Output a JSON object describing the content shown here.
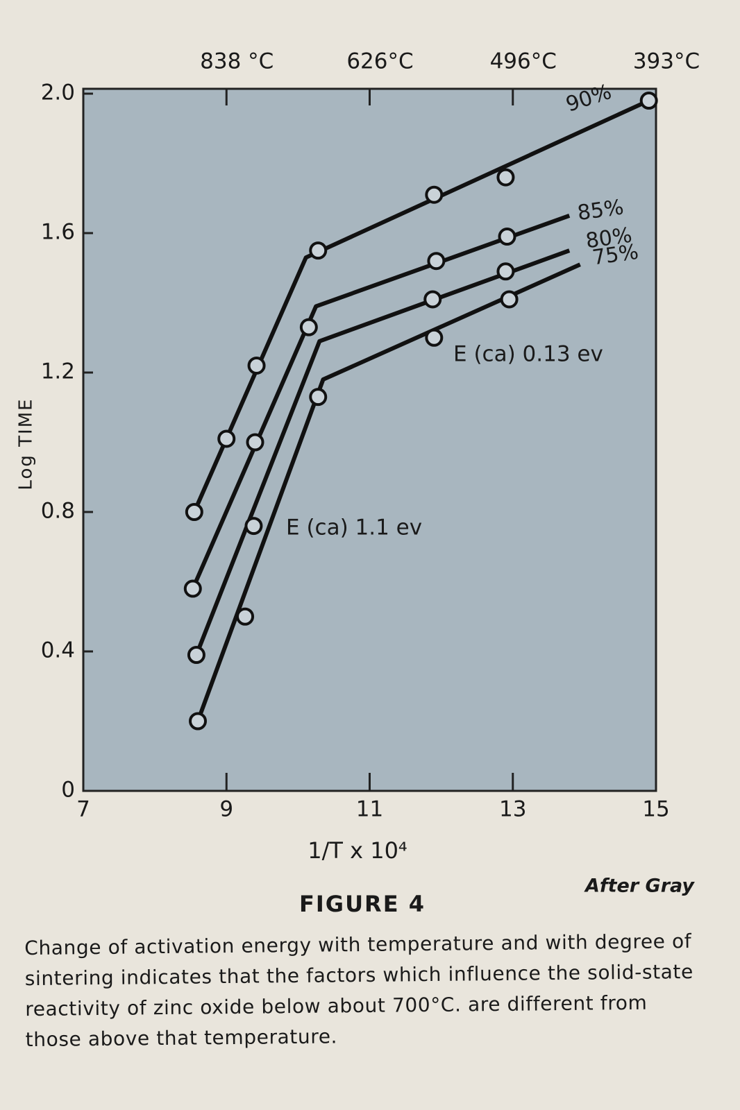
{
  "chart_data": {
    "type": "line",
    "title": "FIGURE 4",
    "credit": "After Gray",
    "caption": "Change of activation energy with temperature and with degree of sintering indicates that the factors which influence the solid-state reactivity of zinc oxide below about 700°C. are different from those above that temperature.",
    "x_label": "1/T x 10⁴",
    "y_label": "Log TIME",
    "xlim": [
      7,
      15
    ],
    "ylim": [
      0,
      2
    ],
    "xticks": [
      7,
      9,
      11,
      13,
      15
    ],
    "yticks": [
      0,
      0.4,
      0.8,
      1.2,
      1.6,
      {
        "value": 2,
        "label": "2.0"
      }
    ],
    "x2ticks": [
      {
        "value": 9,
        "label": "838 °C"
      },
      {
        "value": 11,
        "label": "626°C"
      },
      {
        "value": 13,
        "label": "496°C"
      },
      {
        "value": 15,
        "label": "393°C"
      }
    ],
    "annotations": [
      "E (ca) 0.13 ev",
      "E (ca) 1.1 ev"
    ],
    "series": [
      {
        "name": "90%",
        "color": "#111111",
        "x": [
          8.55,
          9.0,
          9.42,
          10.28,
          11.9,
          12.9,
          14.9
        ],
        "values": [
          0.8,
          1.01,
          1.22,
          1.55,
          1.71,
          1.76,
          1.98
        ],
        "fit_x": [
          8.55,
          10.11,
          14.9
        ],
        "fit_values": [
          0.8,
          1.53,
          1.98
        ]
      },
      {
        "name": "85%",
        "color": "#111111",
        "x": [
          8.53,
          9.4,
          10.15,
          11.93,
          12.92
        ],
        "values": [
          0.58,
          1.0,
          1.33,
          1.52,
          1.59
        ],
        "fit_x": [
          8.53,
          10.25,
          13.79
        ],
        "fit_values": [
          0.58,
          1.39,
          1.65
        ]
      },
      {
        "name": "80%",
        "color": "#111111",
        "x": [
          8.58,
          9.38,
          11.88,
          12.9
        ],
        "values": [
          0.39,
          0.76,
          1.41,
          1.49
        ],
        "fit_x": [
          8.58,
          10.3,
          13.79
        ],
        "fit_values": [
          0.39,
          1.29,
          1.55
        ]
      },
      {
        "name": "75%",
        "color": "#111111",
        "x": [
          8.6,
          9.26,
          10.28,
          11.9,
          12.95
        ],
        "values": [
          0.2,
          0.5,
          1.13,
          1.3,
          1.41
        ],
        "fit_x": [
          8.6,
          10.35,
          13.94
        ],
        "fit_values": [
          0.2,
          1.18,
          1.51
        ]
      }
    ]
  }
}
